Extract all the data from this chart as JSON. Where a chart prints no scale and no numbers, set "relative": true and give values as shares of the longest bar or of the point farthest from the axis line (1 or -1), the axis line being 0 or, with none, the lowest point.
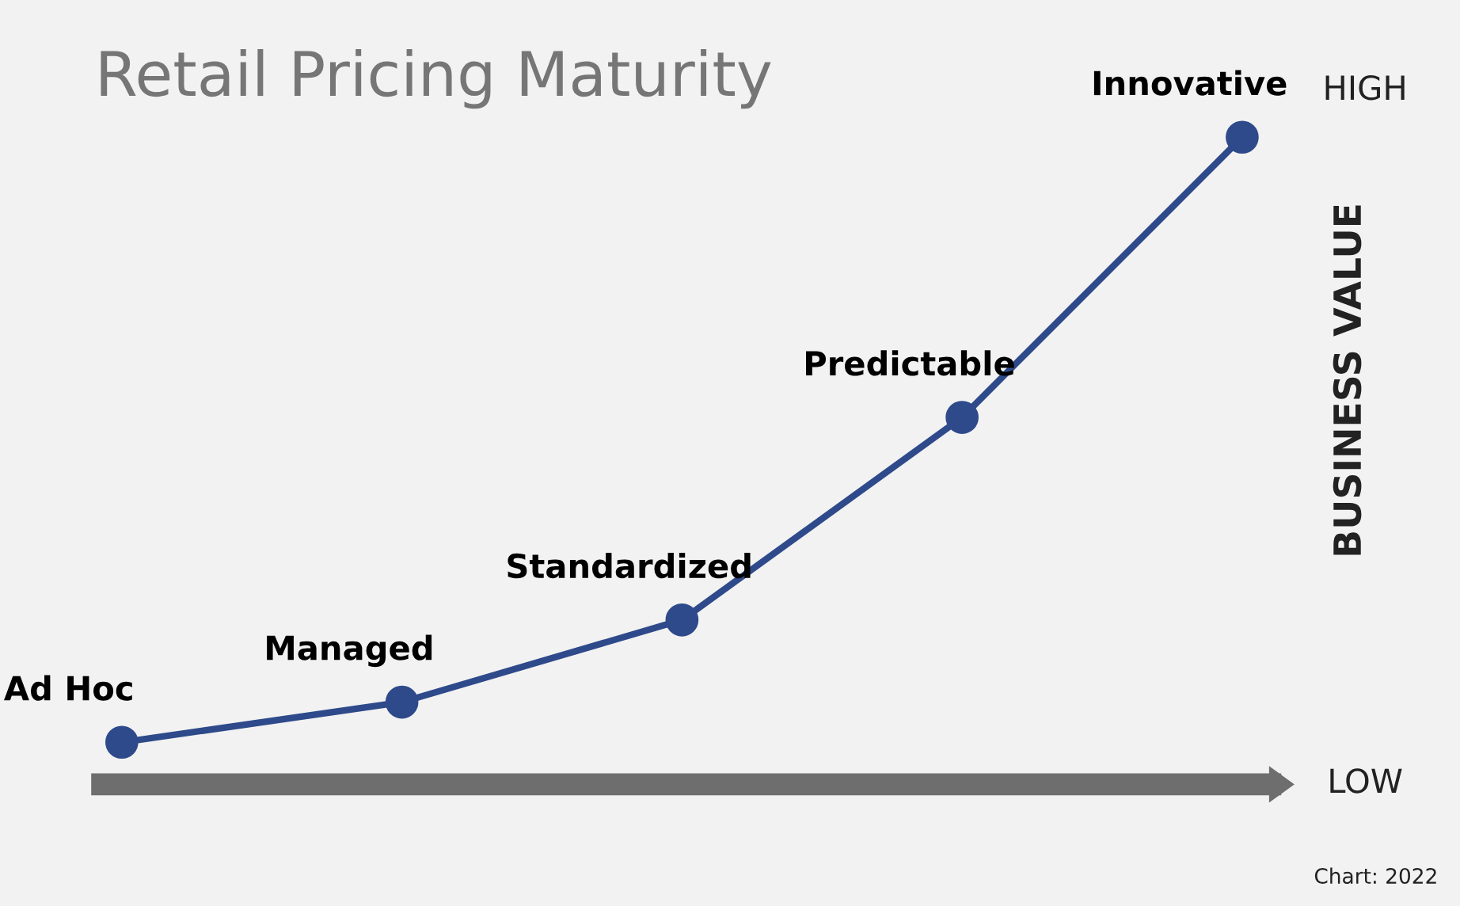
{
  "chart_data": {
    "type": "line",
    "title": "Retail Pricing Maturity",
    "categories": [
      "Ad Hoc",
      "Managed",
      "Standardized",
      "Predictable",
      "Innovative"
    ],
    "series": [
      {
        "color": "#2e4a8b",
        "values": [
          0.065,
          0.127,
          0.254,
          0.567,
          1
        ]
      }
    ],
    "relative": true,
    "marker": "circle",
    "line_style": "solid",
    "y2label": "BUSINESS VALUE",
    "annotations": [
      "HIGH",
      "LOW",
      "Chart: 2022"
    ]
  }
}
